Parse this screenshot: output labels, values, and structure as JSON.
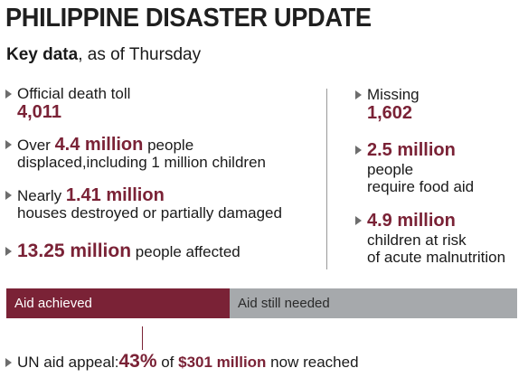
{
  "header": {
    "title": "PHILIPPINE DISASTER UPDATE",
    "subtitle_bold": "Key data",
    "subtitle_rest": ", as of Thursday"
  },
  "left_items": {
    "death_label": "Official death toll",
    "death_value": "4,011",
    "displaced_pre": "Over ",
    "displaced_value": "4.4 million",
    "displaced_post": " people",
    "displaced_line2": "displaced,including 1 million children",
    "houses_pre": "Nearly ",
    "houses_value": "1.41 million",
    "houses_line2": "houses destroyed or partially damaged",
    "affected_value": "13.25 million",
    "affected_post": " people affected"
  },
  "right_items": {
    "missing_label": "Missing",
    "missing_value": "1,602",
    "food_value": "2.5 million",
    "food_line2": "people",
    "food_line3": "require food aid",
    "children_value": "4.9 million",
    "children_line2": "children at risk",
    "children_line3": "of acute malnutrition"
  },
  "aid_bar": {
    "achieved_label": "Aid achieved",
    "needed_label": "Aid still needed",
    "achieved_fraction": 0.43,
    "accent_color": "#7a2236",
    "needed_color": "#a6a9ac"
  },
  "appeal": {
    "label": "UN aid appeal:",
    "percent": "43%",
    "of_text": " of ",
    "amount": "$301 million",
    "post": " now reached"
  }
}
